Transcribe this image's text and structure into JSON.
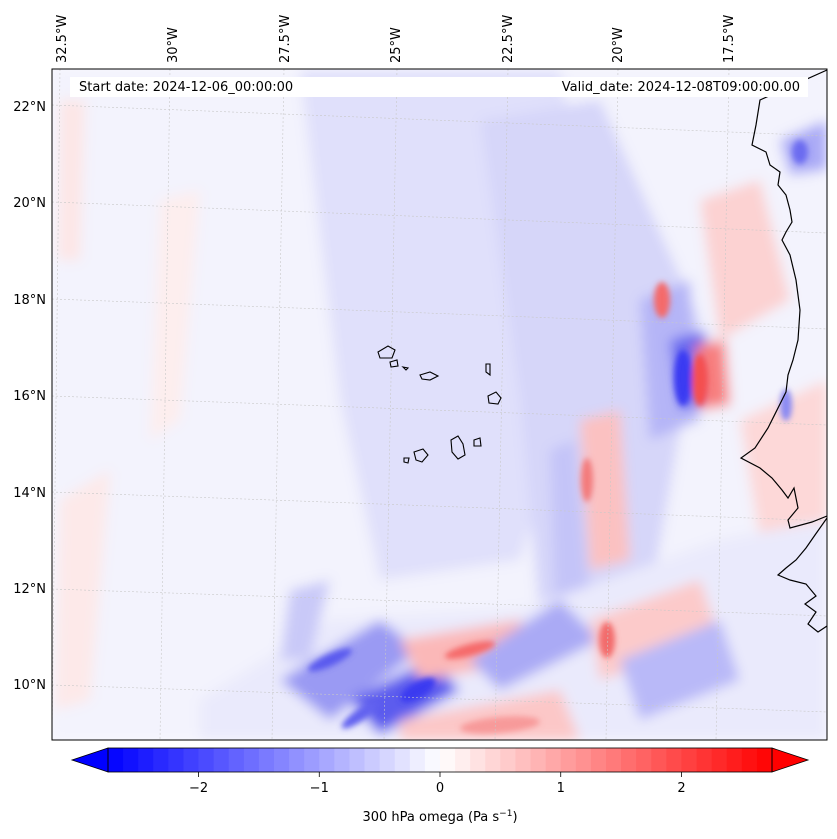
{
  "header": {
    "start_date": "Start date: 2024-12-06_00:00:00",
    "valid_date": "Valid_date: 2024-12-08T09:00:00.00"
  },
  "map": {
    "lon_labels": [
      "32.5°W",
      "30°W",
      "27.5°W",
      "25°W",
      "22.5°W",
      "20°W",
      "17.5°W"
    ],
    "lat_labels": [
      "22°N",
      "20°N",
      "18°N",
      "16°N",
      "14°N",
      "12°N",
      "10°N"
    ],
    "field": "300 hPa omega"
  },
  "colorbar": {
    "ticks": [
      "−2",
      "−1",
      "0",
      "1",
      "2"
    ],
    "label_main": "300 hPa omega (Pa s",
    "label_exp": "−1",
    "label_close": ")",
    "vmin": -2.75,
    "vmax": 2.75,
    "colors": {
      "negative": "#0000ff",
      "zero": "#ffffff",
      "positive": "#ff0000"
    }
  }
}
